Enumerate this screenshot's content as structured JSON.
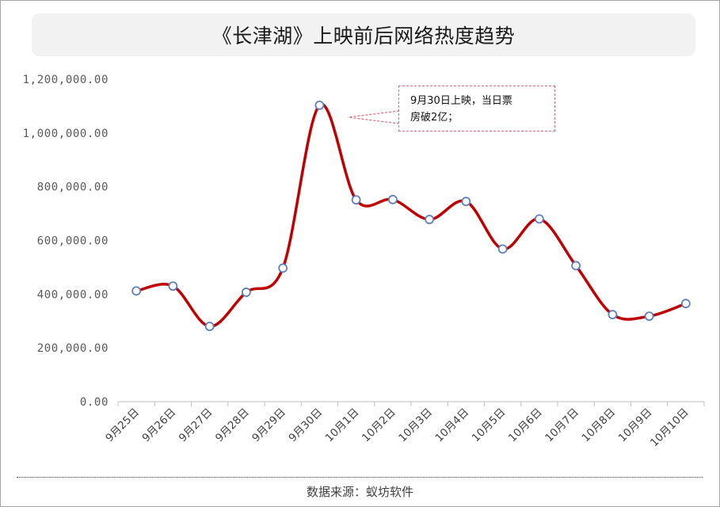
{
  "chart_data": {
    "type": "line",
    "title": "《长津湖》上映前后网络热度趋势",
    "categories": [
      "9月25日",
      "9月26日",
      "9月27日",
      "9月28日",
      "9月29日",
      "9月30日",
      "10月1日",
      "10月2日",
      "10月3日",
      "10月4日",
      "10月5日",
      "10月6日",
      "10月7日",
      "10月8日",
      "10月9日",
      "10月10日"
    ],
    "series": [
      {
        "values": [
          412000,
          430000,
          280000,
          407000,
          497000,
          1103000,
          751000,
          752000,
          678000,
          745000,
          568000,
          680000,
          506000,
          324000,
          318000,
          365000
        ]
      }
    ],
    "ylim": [
      0,
      1200000
    ],
    "yticks": [
      0,
      200000,
      400000,
      600000,
      800000,
      1000000,
      1200000
    ],
    "ytick_labels": [
      "0.00",
      "200,000.00",
      "400,000.00",
      "600,000.00",
      "800,000.00",
      "1,000,000.00",
      "1,200,000.00"
    ],
    "grid": false,
    "line_color": "#c00000",
    "marker_fill": "#ffffff",
    "marker_edge": "#5b7fbf",
    "smooth": true,
    "annotation": {
      "text_line1": "9月30日上映，当日票",
      "text_line2": "房破2亿；",
      "target_category": "9月30日",
      "border_color": "#e06a80"
    },
    "source": "数据来源：蚁坊软件"
  }
}
